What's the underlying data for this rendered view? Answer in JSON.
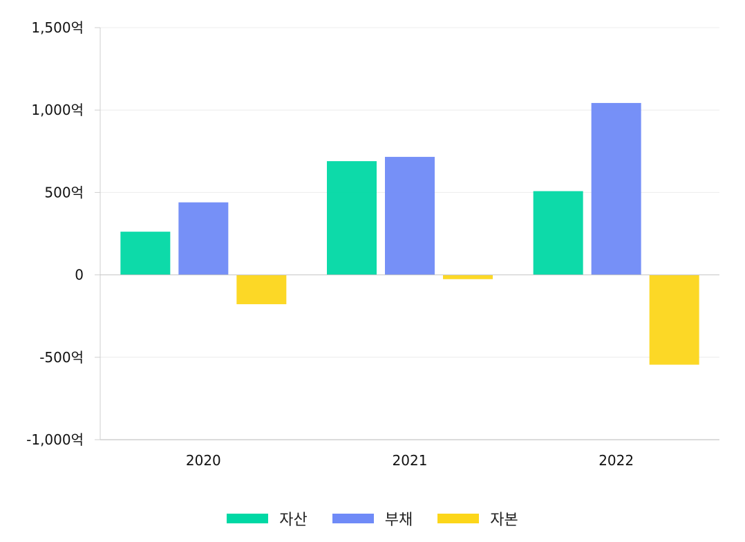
{
  "chart_data": {
    "type": "bar",
    "title": "",
    "xlabel": "",
    "ylabel": "",
    "categories": [
      "2020",
      "2021",
      "2022"
    ],
    "series": [
      {
        "name": "자산",
        "color": "#00d8a4",
        "values": [
          262,
          690,
          508
        ]
      },
      {
        "name": "부채",
        "color": "#6f8af7",
        "values": [
          440,
          716,
          1043
        ]
      },
      {
        "name": "자본",
        "color": "#fcd61a",
        "values": [
          -178,
          -26,
          -545
        ]
      }
    ],
    "ylim": [
      -1000,
      1500
    ],
    "yticks": [
      {
        "value": 1500,
        "label": "1,500억"
      },
      {
        "value": 1000,
        "label": "1,000억"
      },
      {
        "value": 500,
        "label": "500억"
      },
      {
        "value": 0,
        "label": "0"
      },
      {
        "value": -500,
        "label": "-500억"
      },
      {
        "value": -1000,
        "label": "-1,000억"
      }
    ],
    "grid": true,
    "legend_position": "bottom-center"
  }
}
